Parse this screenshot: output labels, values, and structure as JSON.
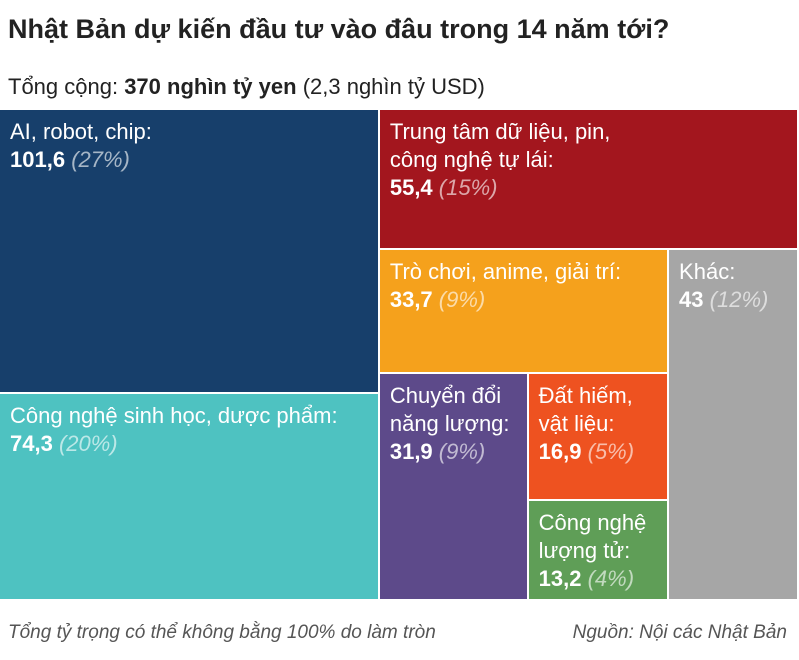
{
  "header": {
    "title": "Nhật Bản dự kiến đầu tư vào đâu trong 14 năm tới?",
    "subtitle_prefix": "Tổng cộng: ",
    "subtitle_total": "370 nghìn tỷ yen",
    "subtitle_suffix": " (2,3 nghìn tỷ USD)"
  },
  "chart_data": {
    "type": "treemap",
    "title": "Nhật Bản dự kiến đầu tư vào đâu trong 14 năm tới?",
    "subtitle": "Tổng cộng: 370 nghìn tỷ yen (2,3 nghìn tỷ USD)",
    "unit": "nghìn tỷ yen",
    "total": 370,
    "items": [
      {
        "label": "AI, robot, chip:",
        "value": 101.6,
        "value_label": "101,6",
        "percent_label": "(27%)",
        "color": "#173f6b"
      },
      {
        "label": "Công nghệ sinh học, dược phẩm:",
        "value": 74.3,
        "value_label": "74,3",
        "percent_label": "(20%)",
        "color": "#4ec2c1"
      },
      {
        "label": "Trung tâm dữ liệu, pin,\ncông nghệ tự lái:",
        "value": 55.4,
        "value_label": "55,4",
        "percent_label": "(15%)",
        "color": "#a3161e"
      },
      {
        "label": "Trò chơi, anime, giải trí:",
        "value": 33.7,
        "value_label": "33,7",
        "percent_label": "(9%)",
        "color": "#f5a11c"
      },
      {
        "label": "Khác:",
        "value": 43,
        "value_label": "43",
        "percent_label": "(12%)",
        "color": "#a6a6a6"
      },
      {
        "label": "Chuyển đổi\nnăng lượng:",
        "value": 31.9,
        "value_label": "31,9",
        "percent_label": "(9%)",
        "color": "#5d4a8a"
      },
      {
        "label": "Đất hiếm,\nvật liệu:",
        "value": 16.9,
        "value_label": "16,9",
        "percent_label": "(5%)",
        "color": "#ee5220"
      },
      {
        "label": "Công nghệ\nlượng tử:",
        "value": 13.2,
        "value_label": "13,2",
        "percent_label": "(4%)",
        "color": "#5f9e57"
      }
    ]
  },
  "footer": {
    "note": "Tổng tỷ trọng có thể không bằng 100% do làm tròn",
    "source": "Nguồn: Nội các Nhật Bản"
  }
}
